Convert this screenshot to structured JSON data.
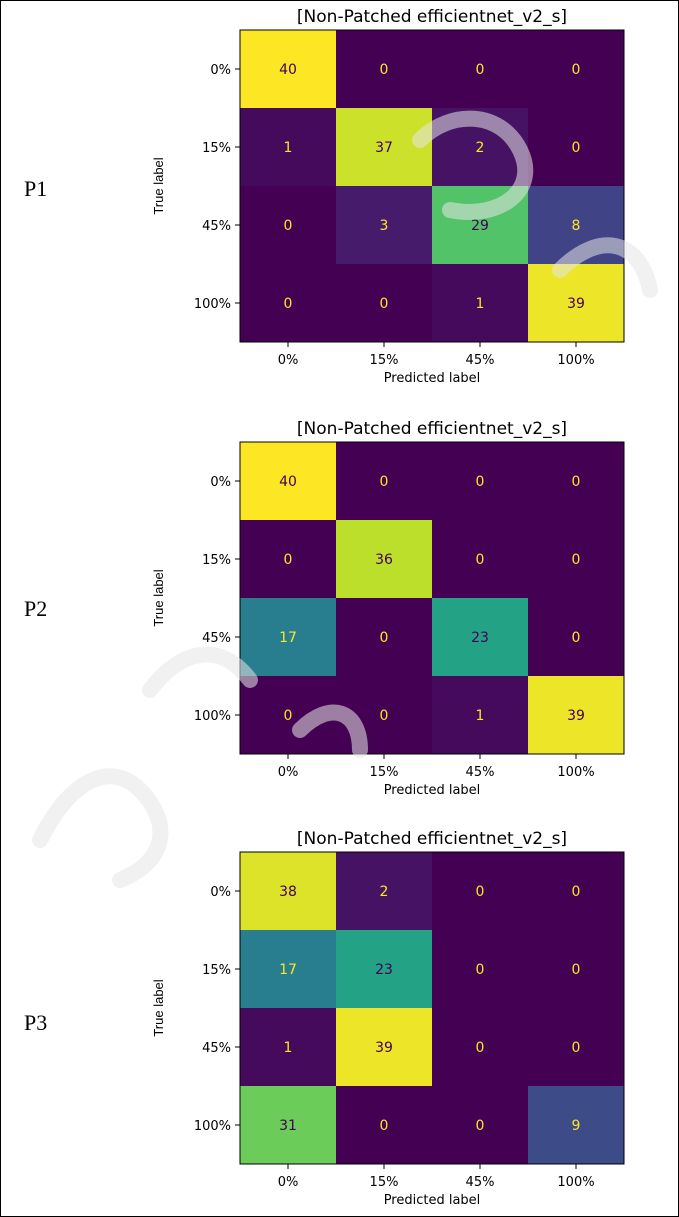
{
  "document": {
    "row_labels": [
      "P1",
      "P2",
      "P3"
    ]
  },
  "colors": {
    "viridis_low": "#440154",
    "viridis_high": "#fde725",
    "text_on_dark": "#fde725",
    "text_on_light": "#440154",
    "watermark": "#e6e6e6"
  },
  "chart_data": [
    {
      "type": "heatmap",
      "title": "[Non-Patched efficientnet_v2_s]",
      "xlabel": "Predicted label",
      "ylabel": "True label",
      "x_ticks": [
        "0%",
        "15%",
        "45%",
        "100%"
      ],
      "y_ticks": [
        "0%",
        "15%",
        "45%",
        "100%"
      ],
      "values": [
        [
          40,
          0,
          0,
          0
        ],
        [
          1,
          37,
          2,
          0
        ],
        [
          0,
          3,
          29,
          8
        ],
        [
          0,
          0,
          1,
          39
        ]
      ],
      "vmin": 0,
      "vmax": 40,
      "colormap": "viridis"
    },
    {
      "type": "heatmap",
      "title": "[Non-Patched efficientnet_v2_s]",
      "xlabel": "Predicted label",
      "ylabel": "True label",
      "x_ticks": [
        "0%",
        "15%",
        "45%",
        "100%"
      ],
      "y_ticks": [
        "0%",
        "15%",
        "45%",
        "100%"
      ],
      "values": [
        [
          40,
          0,
          0,
          0
        ],
        [
          0,
          36,
          0,
          0
        ],
        [
          17,
          0,
          23,
          0
        ],
        [
          0,
          0,
          1,
          39
        ]
      ],
      "vmin": 0,
      "vmax": 40,
      "colormap": "viridis"
    },
    {
      "type": "heatmap",
      "title": "[Non-Patched efficientnet_v2_s]",
      "xlabel": "Predicted label",
      "ylabel": "True label",
      "x_ticks": [
        "0%",
        "15%",
        "45%",
        "100%"
      ],
      "y_ticks": [
        "0%",
        "15%",
        "45%",
        "100%"
      ],
      "values": [
        [
          38,
          2,
          0,
          0
        ],
        [
          17,
          23,
          0,
          0
        ],
        [
          1,
          39,
          0,
          0
        ],
        [
          31,
          0,
          0,
          9
        ]
      ],
      "vmin": 0,
      "vmax": 40,
      "colormap": "viridis"
    }
  ]
}
